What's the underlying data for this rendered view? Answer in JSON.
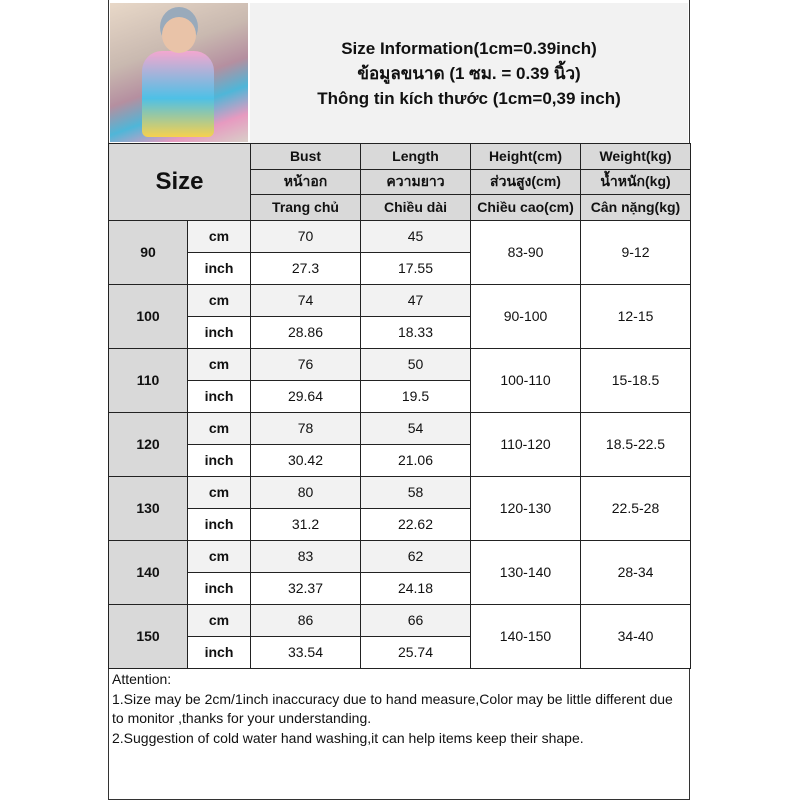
{
  "title": {
    "line1": "Size Information(1cm=0.39inch)",
    "line2": "ข้อมูลขนาด (1 ซม. = 0.39 นิ้ว)",
    "line3": "Thông tin kích thước (1cm=0,39 inch)"
  },
  "table": {
    "size_label": "Size",
    "headers": [
      [
        "Bust",
        "Length",
        "Height(cm)",
        "Weight(kg)"
      ],
      [
        "หน้าอก",
        "ความยาว",
        "ส่วนสูง(cm)",
        "น้ำหนัก(kg)"
      ],
      [
        "Trang chủ",
        "Chiều dài",
        "Chiều cao(cm)",
        "Cân nặng(kg)"
      ]
    ],
    "unit_cm": "cm",
    "unit_inch": "inch",
    "rows": [
      {
        "size": "90",
        "bust_cm": "70",
        "length_cm": "45",
        "bust_in": "27.3",
        "length_in": "17.55",
        "height": "83-90",
        "weight": "9-12"
      },
      {
        "size": "100",
        "bust_cm": "74",
        "length_cm": "47",
        "bust_in": "28.86",
        "length_in": "18.33",
        "height": "90-100",
        "weight": "12-15"
      },
      {
        "size": "110",
        "bust_cm": "76",
        "length_cm": "50",
        "bust_in": "29.64",
        "length_in": "19.5",
        "height": "100-110",
        "weight": "15-18.5"
      },
      {
        "size": "120",
        "bust_cm": "78",
        "length_cm": "54",
        "bust_in": "30.42",
        "length_in": "21.06",
        "height": "110-120",
        "weight": "18.5-22.5"
      },
      {
        "size": "130",
        "bust_cm": "80",
        "length_cm": "58",
        "bust_in": "31.2",
        "length_in": "22.62",
        "height": "120-130",
        "weight": "22.5-28"
      },
      {
        "size": "140",
        "bust_cm": "83",
        "length_cm": "62",
        "bust_in": "32.37",
        "length_in": "24.18",
        "height": "130-140",
        "weight": "28-34"
      },
      {
        "size": "150",
        "bust_cm": "86",
        "length_cm": "66",
        "bust_in": "33.54",
        "length_in": "25.74",
        "height": "140-150",
        "weight": "34-40"
      }
    ]
  },
  "notes": {
    "heading": "Attention:",
    "note1": "1.Size may be 2cm/1inch inaccuracy due to hand measure,Color may be little different due to monitor ,thanks for your understanding.",
    "note2": "2.Suggestion of cold water hand washing,it can help items keep their shape."
  },
  "colors": {
    "header_bg": "#d9d9d9",
    "cm_row_bg": "#f2f2f2",
    "inch_row_bg": "#ffffff"
  }
}
